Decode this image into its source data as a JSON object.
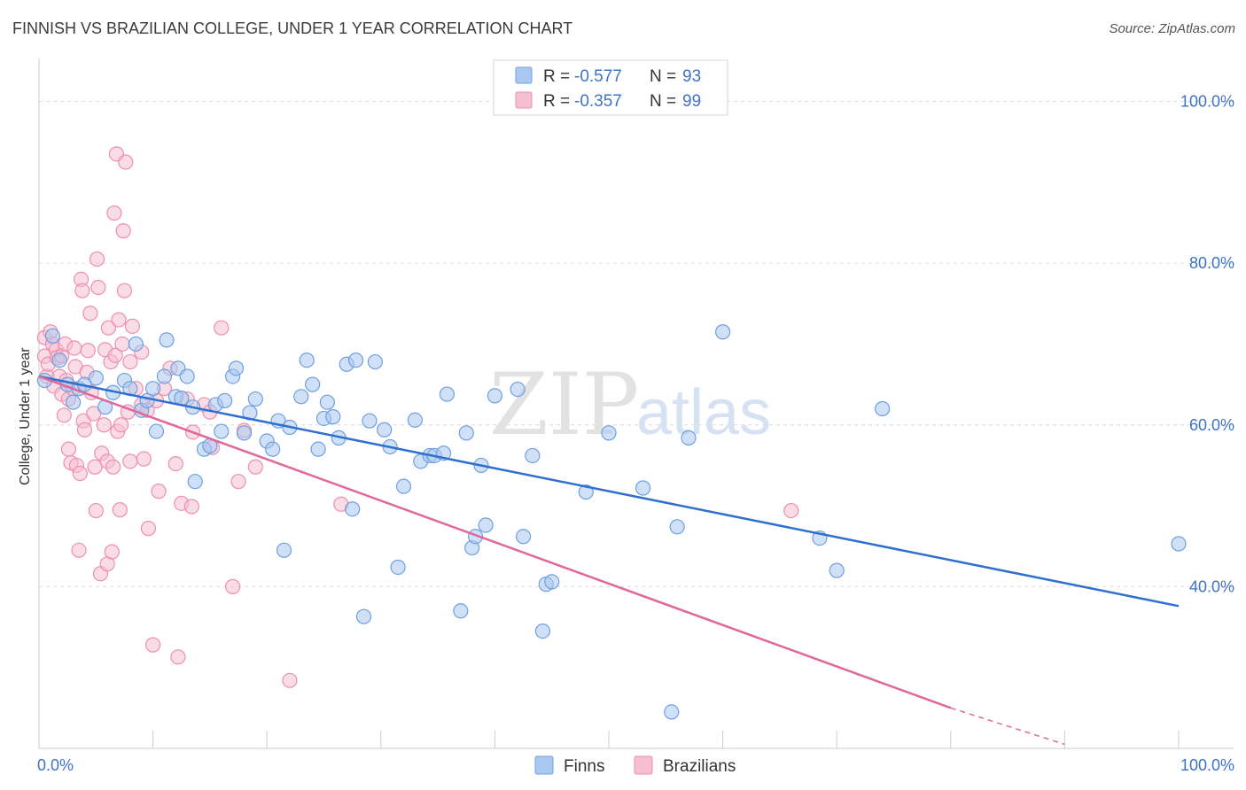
{
  "header": {
    "title": "FINNISH VS BRAZILIAN COLLEGE, UNDER 1 YEAR CORRELATION CHART",
    "source": "Source: ZipAtlas.com"
  },
  "watermark": {
    "zip": "ZIP",
    "atlas": "atlas"
  },
  "colors": {
    "finns_fill": "#a9c8f0",
    "finns_stroke": "#6f9fe0",
    "finns_line": "#2f6fcf",
    "brazilians_fill": "#f6bfd1",
    "brazilians_stroke": "#ee8fae",
    "brazilians_line": "#e0679a",
    "axis_label": "#3d73c6",
    "grid": "#dcdcdc"
  },
  "legend": {
    "rows": [
      {
        "series": "finns",
        "r_label": "R = ",
        "r_value": "-0.577",
        "n_label": "N = ",
        "n_value": "93"
      },
      {
        "series": "brazilians",
        "r_label": "R = ",
        "r_value": "-0.357",
        "n_label": "N = ",
        "n_value": "99"
      }
    ],
    "bottom": [
      {
        "series": "finns",
        "label": "Finns"
      },
      {
        "series": "brazilians",
        "label": "Brazilians"
      }
    ]
  },
  "chart_data": {
    "type": "scatter",
    "title": "FINNISH VS BRAZILIAN COLLEGE, UNDER 1 YEAR CORRELATION CHART",
    "xlabel": "",
    "ylabel": "College, Under 1 year",
    "xlim": [
      0,
      100
    ],
    "ylim": [
      20,
      104
    ],
    "x_tick_labels": [
      "0.0%",
      "100.0%"
    ],
    "y_ticks": [
      40,
      60,
      80,
      100
    ],
    "y_tick_labels": [
      "40.0%",
      "60.0%",
      "80.0%",
      "100.0%"
    ],
    "grid": true,
    "legend_placement": "top-center",
    "series": [
      {
        "name": "Finns",
        "r": -0.577,
        "n": 93,
        "trend": {
          "x": [
            0,
            100
          ],
          "y": [
            66.0,
            37.6
          ]
        },
        "points": [
          [
            0.5,
            65.5
          ],
          [
            1.2,
            71
          ],
          [
            1.8,
            68
          ],
          [
            2.5,
            65
          ],
          [
            3,
            62.8
          ],
          [
            3.5,
            64.5
          ],
          [
            4,
            65
          ],
          [
            5,
            65.8
          ],
          [
            5.8,
            62.2
          ],
          [
            6.5,
            64
          ],
          [
            7.5,
            65.5
          ],
          [
            8,
            64.5
          ],
          [
            8.5,
            70
          ],
          [
            9,
            61.8
          ],
          [
            9.5,
            63
          ],
          [
            10,
            64.5
          ],
          [
            10.3,
            59.2
          ],
          [
            11,
            66
          ],
          [
            11.2,
            70.5
          ],
          [
            12,
            63.5
          ],
          [
            12.2,
            67
          ],
          [
            12.5,
            63.3
          ],
          [
            13,
            66
          ],
          [
            13.5,
            62.2
          ],
          [
            13.7,
            53
          ],
          [
            14.5,
            57
          ],
          [
            15,
            57.4
          ],
          [
            15.5,
            62.5
          ],
          [
            16,
            59.2
          ],
          [
            16.3,
            63
          ],
          [
            17,
            66
          ],
          [
            17.3,
            67
          ],
          [
            18,
            59
          ],
          [
            18.5,
            61.5
          ],
          [
            19,
            63.2
          ],
          [
            20,
            58
          ],
          [
            20.5,
            57
          ],
          [
            21,
            60.5
          ],
          [
            21.5,
            44.5
          ],
          [
            22,
            59.7
          ],
          [
            23,
            63.5
          ],
          [
            23.5,
            68
          ],
          [
            24,
            65
          ],
          [
            24.5,
            57
          ],
          [
            25,
            60.8
          ],
          [
            25.3,
            62.8
          ],
          [
            25.8,
            61
          ],
          [
            26.3,
            58.4
          ],
          [
            27,
            67.5
          ],
          [
            27.5,
            49.6
          ],
          [
            27.8,
            68
          ],
          [
            28.5,
            36.3
          ],
          [
            29,
            60.5
          ],
          [
            29.5,
            67.8
          ],
          [
            30.3,
            59.4
          ],
          [
            30.8,
            57.3
          ],
          [
            31.5,
            42.4
          ],
          [
            32,
            52.4
          ],
          [
            33,
            60.6
          ],
          [
            33.5,
            55.5
          ],
          [
            34.3,
            56.2
          ],
          [
            34.7,
            56.2
          ],
          [
            35.5,
            56.5
          ],
          [
            35.8,
            63.8
          ],
          [
            37,
            37
          ],
          [
            37.5,
            59
          ],
          [
            38,
            44.8
          ],
          [
            38.3,
            46.2
          ],
          [
            38.8,
            55
          ],
          [
            39.2,
            47.6
          ],
          [
            40,
            63.6
          ],
          [
            42,
            64.4
          ],
          [
            42.5,
            46.2
          ],
          [
            43.3,
            56.2
          ],
          [
            44.2,
            34.5
          ],
          [
            44.5,
            40.3
          ],
          [
            45,
            40.6
          ],
          [
            48,
            51.7
          ],
          [
            50,
            59
          ],
          [
            53,
            52.2
          ],
          [
            55.5,
            24.5
          ],
          [
            56,
            47.4
          ],
          [
            57,
            58.4
          ],
          [
            60,
            71.5
          ],
          [
            68.5,
            46
          ],
          [
            70,
            42
          ],
          [
            74,
            62
          ],
          [
            100,
            45.3
          ]
        ]
      },
      {
        "name": "Brazilians",
        "r": -0.357,
        "n": 99,
        "trend": {
          "x": [
            0,
            80
          ],
          "y": [
            66.0,
            25.0
          ]
        },
        "trend_dashed": {
          "x": [
            80,
            90
          ],
          "y": [
            25.0,
            20.5
          ]
        },
        "points": [
          [
            0.5,
            70.8
          ],
          [
            0.5,
            68.5
          ],
          [
            0.7,
            66
          ],
          [
            0.8,
            67.5
          ],
          [
            1,
            71.5
          ],
          [
            1.2,
            70
          ],
          [
            1.3,
            64.8
          ],
          [
            1.5,
            69.3
          ],
          [
            1.6,
            68.3
          ],
          [
            1.8,
            66
          ],
          [
            2,
            63.8
          ],
          [
            2,
            68.5
          ],
          [
            2.2,
            61.2
          ],
          [
            2.3,
            70
          ],
          [
            2.4,
            65.5
          ],
          [
            2.6,
            63.2
          ],
          [
            2.6,
            57
          ],
          [
            2.8,
            55.3
          ],
          [
            3,
            64.5
          ],
          [
            3.1,
            69.5
          ],
          [
            3.2,
            67.2
          ],
          [
            3.3,
            55
          ],
          [
            3.5,
            44.5
          ],
          [
            3.6,
            54
          ],
          [
            3.7,
            78
          ],
          [
            3.8,
            76.6
          ],
          [
            3.9,
            60.5
          ],
          [
            4,
            59.4
          ],
          [
            4.2,
            66.5
          ],
          [
            4.3,
            69.2
          ],
          [
            4.5,
            73.8
          ],
          [
            4.6,
            64
          ],
          [
            4.8,
            61.4
          ],
          [
            4.9,
            54.8
          ],
          [
            5,
            49.4
          ],
          [
            5.1,
            80.5
          ],
          [
            5.2,
            77
          ],
          [
            5.4,
            41.6
          ],
          [
            5.5,
            56.5
          ],
          [
            5.7,
            60
          ],
          [
            5.8,
            69.3
          ],
          [
            6,
            55.5
          ],
          [
            6,
            42.8
          ],
          [
            6.1,
            72
          ],
          [
            6.3,
            67.8
          ],
          [
            6.4,
            44.3
          ],
          [
            6.5,
            54.8
          ],
          [
            6.6,
            86.2
          ],
          [
            6.7,
            68.6
          ],
          [
            6.8,
            93.5
          ],
          [
            6.9,
            59.2
          ],
          [
            7,
            73
          ],
          [
            7.1,
            49.5
          ],
          [
            7.2,
            60
          ],
          [
            7.3,
            70
          ],
          [
            7.4,
            84
          ],
          [
            7.5,
            76.6
          ],
          [
            7.6,
            92.5
          ],
          [
            7.8,
            61.6
          ],
          [
            8,
            55.5
          ],
          [
            8,
            67.8
          ],
          [
            8.2,
            72.2
          ],
          [
            8.5,
            64.5
          ],
          [
            9,
            62.5
          ],
          [
            9,
            69
          ],
          [
            9.2,
            55.8
          ],
          [
            9.5,
            61.8
          ],
          [
            9.6,
            47.2
          ],
          [
            10,
            32.8
          ],
          [
            10.3,
            63
          ],
          [
            10.5,
            51.8
          ],
          [
            11,
            64.5
          ],
          [
            11.5,
            67
          ],
          [
            12,
            55.2
          ],
          [
            12.2,
            31.3
          ],
          [
            12.5,
            50.3
          ],
          [
            13,
            63.2
          ],
          [
            13.4,
            49.9
          ],
          [
            13.5,
            59.1
          ],
          [
            14.5,
            62.5
          ],
          [
            15,
            61.6
          ],
          [
            15.2,
            57.2
          ],
          [
            16,
            72
          ],
          [
            17,
            40
          ],
          [
            17.5,
            53
          ],
          [
            18,
            59.3
          ],
          [
            19,
            54.8
          ],
          [
            22,
            28.4
          ],
          [
            26.5,
            50.2
          ],
          [
            66,
            49.4
          ]
        ]
      }
    ]
  }
}
